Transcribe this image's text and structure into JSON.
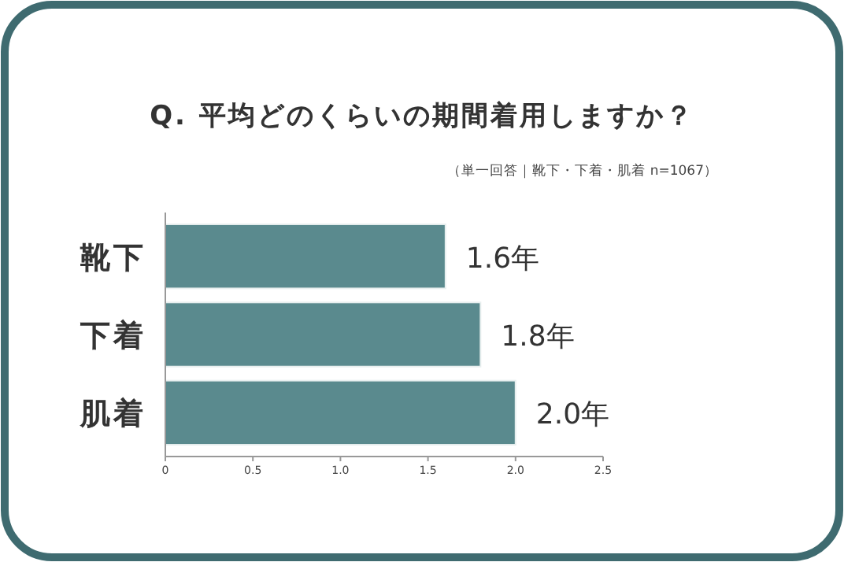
{
  "chart_data": {
    "type": "bar",
    "orientation": "horizontal",
    "title": "Q. 平均どのくらいの期間着用しますか？",
    "subtitle": "（単一回答｜靴下・下着・肌着 n=1067）",
    "categories": [
      "靴下",
      "下着",
      "肌着"
    ],
    "values": [
      1.6,
      1.8,
      2.0
    ],
    "value_labels": [
      "1.6年",
      "1.8年",
      "2.0年"
    ],
    "color": "#5a8a8e",
    "xlim": [
      0,
      2.5
    ],
    "xticks": [
      0,
      0.5,
      {
        "value": 1,
        "label": "1.0"
      },
      1.5,
      {
        "value": 2,
        "label": "2.0"
      },
      2.5
    ],
    "grid": false
  }
}
